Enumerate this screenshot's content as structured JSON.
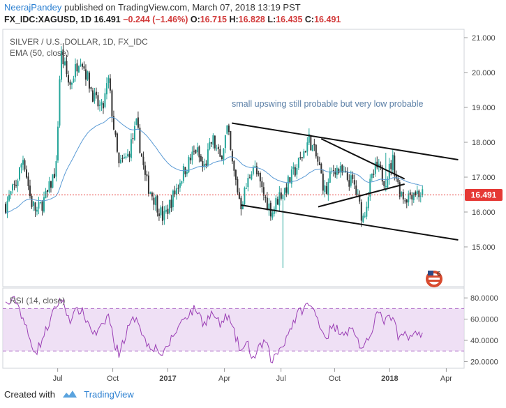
{
  "header": {
    "author": "NeerajPandey",
    "published_text": "published on TradingView.com, March 07, 2018 13:19 PST",
    "symbol": "FX_IDC:XAGUSD, 1D",
    "last": "16.491",
    "change": "−0.244 (−1.46%)",
    "o_label": "O:",
    "o_value": "16.715",
    "h_label": "H:",
    "h_value": "16.828",
    "l_label": "L:",
    "l_value": "16.435",
    "c_label": "C:",
    "c_value": "16.491"
  },
  "footer": {
    "created_with": "Created with",
    "brand": "TradingView"
  },
  "colors": {
    "up": "#26a69a",
    "down": "#333333",
    "ema": "#5b9bd5",
    "rsi": "#9b3fb5",
    "price_line": "#e53935",
    "rsi_band": "#e9d6f2"
  },
  "chart_data": [
    {
      "type": "candlestick",
      "title": "SILVER / U.S. DOLLAR, 1D, FX_IDC",
      "indicator": "EMA (50, close)",
      "current_price_label": "16.491",
      "annotation": "small upswing still probable but very low probable",
      "y_ticks": [
        "21.000",
        "20.000",
        "19.000",
        "18.000",
        "17.000",
        "16.000",
        "15.000"
      ],
      "y_tick_values": [
        21,
        20,
        19,
        18,
        17,
        16,
        15
      ],
      "ylim": [
        13.9,
        21.2
      ],
      "x_tick_labels": [
        "Jul",
        "Oct",
        "2017",
        "Apr",
        "Jul",
        "Oct",
        "2018",
        "Apr"
      ],
      "x_tick_positions": [
        0.175,
        0.36,
        0.545,
        0.735,
        0.925,
        1.105,
        1.29,
        1.48
      ],
      "x_range": [
        0.0,
        1.54
      ],
      "anchors_x": [
        0.0,
        0.035,
        0.06,
        0.085,
        0.105,
        0.14,
        0.17,
        0.185,
        0.215,
        0.25,
        0.3,
        0.325,
        0.345,
        0.365,
        0.38,
        0.41,
        0.44,
        0.47,
        0.51,
        0.53,
        0.55,
        0.6,
        0.64,
        0.665,
        0.695,
        0.72,
        0.745,
        0.76,
        0.79,
        0.815,
        0.83,
        0.87,
        0.895,
        0.92,
        0.935,
        0.96,
        0.99,
        1.02,
        1.05,
        1.075,
        1.09,
        1.105,
        1.14,
        1.17,
        1.2,
        1.225,
        1.245,
        1.275,
        1.3,
        1.32,
        1.34,
        1.37,
        1.4
      ],
      "anchors_y": [
        16.2,
        16.8,
        17.6,
        16.3,
        16.0,
        16.5,
        17.3,
        20.6,
        19.6,
        20.5,
        19.2,
        18.9,
        19.8,
        18.3,
        17.3,
        17.6,
        18.5,
        16.9,
        16.2,
        15.8,
        16.2,
        17.2,
        17.8,
        17.2,
        18.1,
        17.5,
        18.4,
        17.4,
        16.2,
        16.9,
        17.4,
        16.4,
        16.0,
        16.5,
        16.6,
        17.0,
        17.5,
        18.1,
        17.4,
        16.5,
        17.0,
        17.3,
        17.0,
        16.8,
        15.8,
        16.8,
        17.3,
        16.9,
        17.5,
        16.7,
        16.4,
        16.6,
        16.5
      ],
      "spikes": [
        {
          "x": 0.93,
          "low": 14.4
        },
        {
          "x": 1.275,
          "high": 17.7
        }
      ],
      "trendlines": [
        {
          "x1": 0.76,
          "y1": 18.55,
          "x2": 1.52,
          "y2": 17.5
        },
        {
          "x1": 0.79,
          "y1": 16.2,
          "x2": 1.52,
          "y2": 15.2
        },
        {
          "x1": 1.06,
          "y1": 18.1,
          "x2": 1.34,
          "y2": 16.95
        },
        {
          "x1": 1.05,
          "y1": 16.15,
          "x2": 1.34,
          "y2": 16.8
        }
      ],
      "watermark_badge": "6"
    },
    {
      "type": "line",
      "title": "RSI (14, close)",
      "y_ticks": [
        "80.0000",
        "60.0000",
        "40.0000",
        "20.0000"
      ],
      "y_tick_values": [
        80,
        60,
        40,
        20
      ],
      "ylim": [
        15,
        88
      ],
      "bands": [
        70,
        30
      ],
      "band_fill": [
        30,
        70
      ],
      "x_range": [
        0.0,
        1.54
      ],
      "anchors_x": [
        0.0,
        0.035,
        0.06,
        0.085,
        0.105,
        0.14,
        0.17,
        0.185,
        0.215,
        0.25,
        0.3,
        0.325,
        0.345,
        0.365,
        0.38,
        0.41,
        0.44,
        0.47,
        0.51,
        0.53,
        0.55,
        0.6,
        0.64,
        0.665,
        0.695,
        0.72,
        0.745,
        0.76,
        0.79,
        0.815,
        0.83,
        0.87,
        0.895,
        0.92,
        0.935,
        0.96,
        0.99,
        1.02,
        1.05,
        1.075,
        1.09,
        1.105,
        1.14,
        1.17,
        1.2,
        1.225,
        1.245,
        1.275,
        1.3,
        1.32,
        1.34,
        1.37,
        1.4
      ],
      "anchors_y": [
        74,
        78,
        60,
        36,
        30,
        52,
        72,
        80,
        60,
        70,
        45,
        52,
        65,
        38,
        28,
        50,
        64,
        38,
        32,
        25,
        38,
        62,
        70,
        56,
        66,
        54,
        64,
        52,
        30,
        36,
        22,
        40,
        20,
        32,
        38,
        54,
        68,
        74,
        60,
        42,
        50,
        52,
        48,
        50,
        28,
        46,
        66,
        58,
        62,
        40,
        46,
        44,
        48
      ]
    }
  ]
}
